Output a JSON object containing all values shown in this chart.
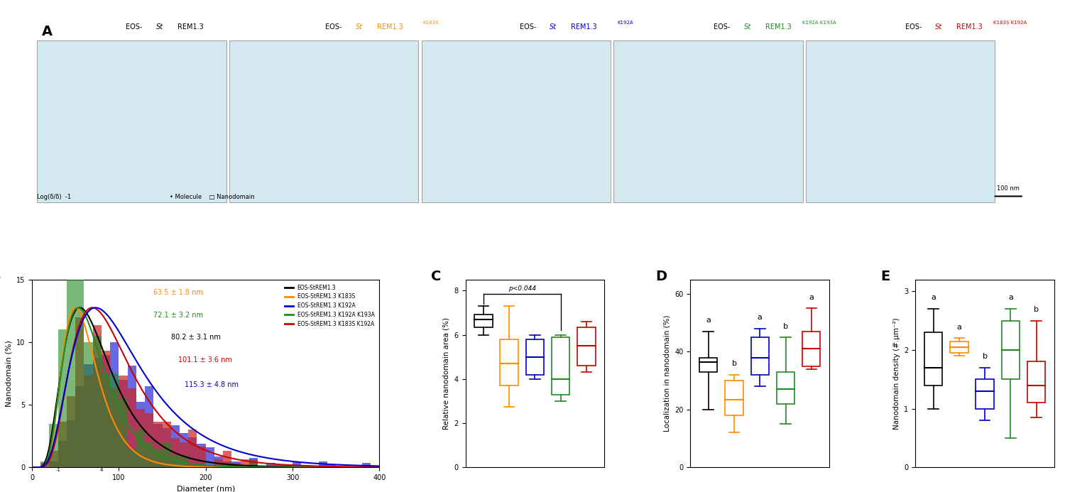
{
  "colors": {
    "black": "#000000",
    "orange": "#FF8C00",
    "blue": "#0000CD",
    "green": "#228B22",
    "red": "#CC0000"
  },
  "legend_labels": [
    "EOS-StREM1.3",
    "EOS-StREM1.3 K183S",
    "EOS-StREM1.3 K192A",
    "EOS-StREM1.3 K192A K193A",
    "EOS-StREM1.3 K183S K192A"
  ],
  "diameters": {
    "black": {
      "mean": 80.2,
      "se": 3.1
    },
    "orange": {
      "mean": 63.5,
      "se": 1.8
    },
    "green": {
      "mean": 72.1,
      "se": 3.2
    },
    "red": {
      "mean": 101.1,
      "se": 3.6
    },
    "blue": {
      "mean": 115.3,
      "se": 4.8
    }
  },
  "panel_C": {
    "ylabel": "Relative nanodomain area (%)",
    "ylim": [
      0,
      8.5
    ],
    "yticks": [
      0,
      2,
      4,
      6,
      8
    ],
    "boxes": [
      {
        "color": "#000000",
        "median": 6.7,
        "q1": 6.35,
        "q3": 6.9,
        "whislo": 6.0,
        "whishi": 7.3,
        "fliers": []
      },
      {
        "color": "#FF8C00",
        "median": 4.7,
        "q1": 3.7,
        "q3": 5.8,
        "whislo": 2.75,
        "whishi": 7.3,
        "fliers": []
      },
      {
        "color": "#0000CD",
        "median": 5.0,
        "q1": 4.2,
        "q3": 5.8,
        "whislo": 4.0,
        "whishi": 6.0,
        "fliers": []
      },
      {
        "color": "#228B22",
        "median": 4.0,
        "q1": 3.3,
        "q3": 5.9,
        "whislo": 3.0,
        "whishi": 6.0,
        "fliers": []
      },
      {
        "color": "#CC0000",
        "median": 5.5,
        "q1": 4.6,
        "q3": 6.35,
        "whislo": 4.3,
        "whishi": 6.6,
        "fliers": []
      }
    ],
    "sig_text": "p<0.044",
    "sig_pairs": [
      [
        0,
        3
      ]
    ]
  },
  "panel_D": {
    "ylabel": "Localization in nanodomain (%)",
    "ylim": [
      0,
      65
    ],
    "yticks": [
      0,
      20,
      40,
      60
    ],
    "boxes": [
      {
        "color": "#000000",
        "median": 36.5,
        "q1": 33.0,
        "q3": 38.0,
        "whislo": 20.0,
        "whishi": 47.0,
        "fliers": [],
        "label": "a"
      },
      {
        "color": "#FF8C00",
        "median": 23.5,
        "q1": 18.0,
        "q3": 30.0,
        "whislo": 12.0,
        "whishi": 32.0,
        "fliers": [],
        "label": "b"
      },
      {
        "color": "#0000CD",
        "median": 38.0,
        "q1": 32.0,
        "q3": 45.0,
        "whislo": 28.0,
        "whishi": 48.0,
        "fliers": [],
        "label": "a"
      },
      {
        "color": "#228B22",
        "median": 27.0,
        "q1": 22.0,
        "q3": 33.0,
        "whislo": 15.0,
        "whishi": 45.0,
        "fliers": [],
        "label": "b"
      },
      {
        "color": "#CC0000",
        "median": 41.0,
        "q1": 35.0,
        "q3": 47.0,
        "whislo": 34.0,
        "whishi": 55.0,
        "fliers": [],
        "label": "a"
      }
    ]
  },
  "panel_E": {
    "ylabel": "Nanodomain density (#.μm⁻²)",
    "ylim": [
      0,
      3.2
    ],
    "yticks": [
      0,
      1,
      2,
      3
    ],
    "boxes": [
      {
        "color": "#000000",
        "median": 1.7,
        "q1": 1.4,
        "q3": 2.3,
        "whislo": 1.0,
        "whishi": 2.7,
        "fliers": [],
        "label": "a"
      },
      {
        "color": "#FF8C00",
        "median": 2.05,
        "q1": 1.95,
        "q3": 2.15,
        "whislo": 1.9,
        "whishi": 2.2,
        "fliers": [],
        "label": "a"
      },
      {
        "color": "#0000CD",
        "median": 1.3,
        "q1": 1.0,
        "q3": 1.5,
        "whislo": 0.8,
        "whishi": 1.7,
        "fliers": [],
        "label": "b"
      },
      {
        "color": "#228B22",
        "median": 2.0,
        "q1": 1.5,
        "q3": 2.5,
        "whislo": 0.5,
        "whishi": 2.7,
        "fliers": [],
        "label": "a"
      },
      {
        "color": "#CC0000",
        "median": 1.4,
        "q1": 1.1,
        "q3": 1.8,
        "whislo": 0.85,
        "whishi": 2.5,
        "fliers": [],
        "label": "b"
      }
    ]
  }
}
